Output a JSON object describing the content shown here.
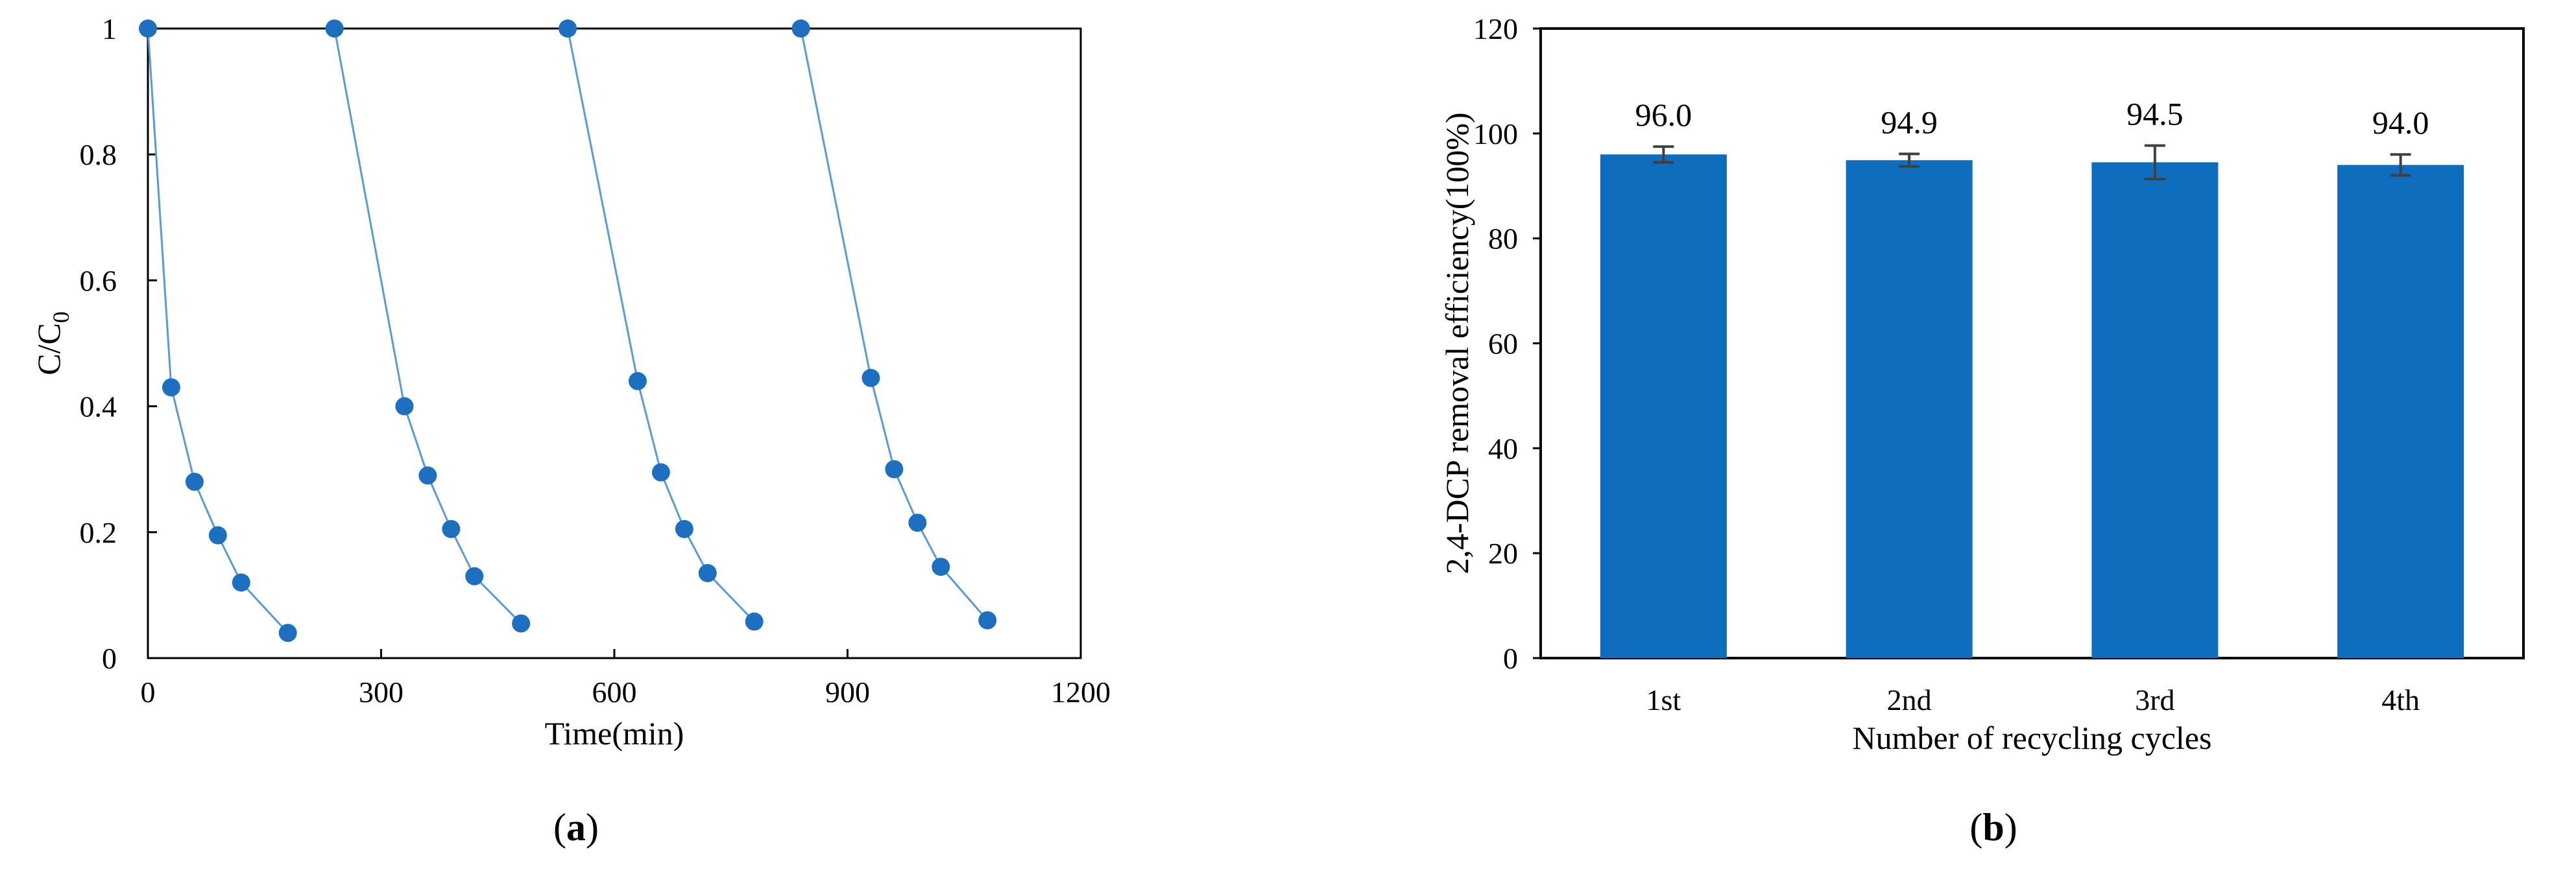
{
  "chart_data": [
    {
      "type": "scatter",
      "panel_label": "a",
      "xlabel": "Time(min)",
      "ylabel": "C/C",
      "ylabel_subscript": "0",
      "xlim": [
        0,
        1200
      ],
      "ylim": [
        0,
        1
      ],
      "xticks": [
        0,
        300,
        600,
        900,
        1200
      ],
      "yticks": [
        0,
        0.2,
        0.4,
        0.6,
        0.8,
        1
      ],
      "grid": false,
      "legend": "none",
      "marker_color": "#1f6fc0",
      "line_color": "#5b9bd5",
      "series": [
        {
          "x": [
            0,
            30,
            60,
            90,
            120,
            180
          ],
          "y": [
            1.0,
            0.43,
            0.28,
            0.195,
            0.12,
            0.04
          ]
        },
        {
          "x": [
            240,
            330,
            360,
            390,
            420,
            480
          ],
          "y": [
            1.0,
            0.4,
            0.29,
            0.205,
            0.13,
            0.055
          ]
        },
        {
          "x": [
            540,
            630,
            660,
            690,
            720,
            780
          ],
          "y": [
            1.0,
            0.44,
            0.295,
            0.205,
            0.135,
            0.058
          ]
        },
        {
          "x": [
            840,
            930,
            960,
            990,
            1020,
            1080
          ],
          "y": [
            1.0,
            0.445,
            0.3,
            0.215,
            0.145,
            0.06
          ]
        }
      ]
    },
    {
      "type": "bar",
      "panel_label": "b",
      "xlabel": "Number of recycling  cycles",
      "ylabel": "2,4-DCP removal efficiency(100%)",
      "ylim": [
        0,
        120
      ],
      "yticks": [
        0,
        20,
        40,
        60,
        80,
        100,
        120
      ],
      "grid": false,
      "legend": "none",
      "bar_color": "#0f6dbf",
      "errorbar_color": "#404040",
      "categories": [
        "1st",
        "2nd",
        "3rd",
        "4th"
      ],
      "values": [
        96.0,
        94.9,
        94.5,
        94.0
      ],
      "value_labels": [
        "96.0",
        "94.9",
        "94.5",
        "94.0"
      ],
      "errors": [
        1.5,
        1.2,
        3.2,
        2.0
      ]
    }
  ]
}
